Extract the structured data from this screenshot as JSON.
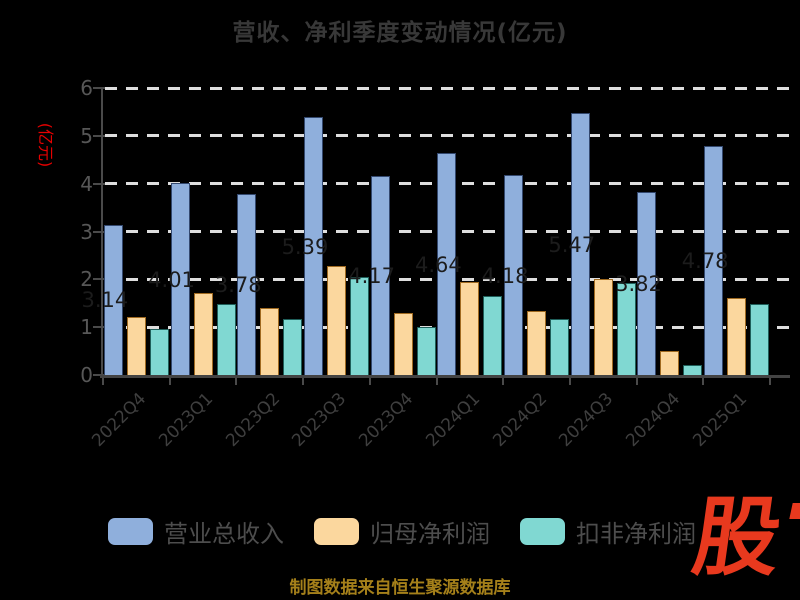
{
  "title": "营收、净利季度变动情况(亿元)",
  "y_axis": {
    "name": "(亿元)",
    "name_color": "#e60000",
    "ticks": [
      "0",
      "1",
      "2",
      "3",
      "4",
      "5",
      "6"
    ]
  },
  "footer": {
    "source_note": "制图数据来自恒生聚源数据库",
    "color": "#a5801a"
  },
  "logo": {
    "text": "股",
    "color": "#e8391e"
  },
  "legend": [
    {
      "label": "营业总收入",
      "color": "#8fafdc"
    },
    {
      "label": "归母净利润",
      "color": "#fbd79e"
    },
    {
      "label": "扣非净利润",
      "color": "#80d8d2"
    }
  ],
  "chart_data": {
    "type": "bar",
    "title": "营收、净利季度变动情况(亿元)",
    "xlabel": "",
    "ylabel": "(亿元)",
    "ylim": [
      0,
      6
    ],
    "y_ticks": [
      0,
      1,
      2,
      3,
      4,
      5,
      6
    ],
    "grid": "horizontal-dashed-white",
    "legend_position": "bottom",
    "categories": [
      "2022Q4",
      "2023Q1",
      "2023Q2",
      "2023Q3",
      "2023Q4",
      "2024Q1",
      "2024Q2",
      "2024Q3",
      "2024Q4",
      "2025Q1"
    ],
    "series": [
      {
        "name": "营业总收入",
        "color": "#8fafdc",
        "border_color": "#33486e",
        "values": [
          3.14,
          4.01,
          3.78,
          5.39,
          4.17,
          4.64,
          4.18,
          5.47,
          3.82,
          4.78
        ],
        "value_labels": [
          "3.14",
          "4.01",
          "3.78",
          "5.39",
          "4.17",
          "4.64",
          "4.18",
          "5.47",
          "3.82",
          "4.78"
        ],
        "value_label_color": "#1c1c1c"
      },
      {
        "name": "归母净利润",
        "color": "#fbd79e",
        "border_color": "#a06a20",
        "values": [
          1.21,
          1.72,
          1.4,
          2.27,
          1.3,
          1.95,
          1.33,
          2.0,
          0.51,
          1.61
        ]
      },
      {
        "name": "扣非净利润",
        "color": "#80d8d2",
        "border_color": "#1f5f5a",
        "values": [
          0.97,
          1.49,
          1.17,
          2.05,
          1.01,
          1.66,
          1.17,
          1.92,
          0.21,
          1.48
        ]
      }
    ]
  }
}
